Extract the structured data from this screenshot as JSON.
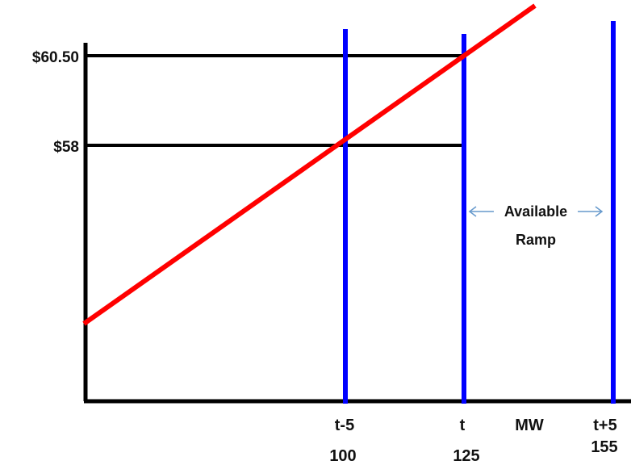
{
  "price_labels": {
    "upper": "$60.50",
    "lower": "$58"
  },
  "columns": [
    {
      "time": "t-5",
      "mw": "100"
    },
    {
      "time": "t",
      "mw": "125"
    },
    {
      "time": "t+5",
      "mw": "155"
    }
  ],
  "axis_unit": "MW",
  "ramp_label": {
    "line1": "Available",
    "line2": "Ramp"
  },
  "colors": {
    "supply_line": "#ff0000",
    "time_lines": "#0000ff",
    "axes": "#000000",
    "ramp_arrows": "#6699cc"
  }
}
